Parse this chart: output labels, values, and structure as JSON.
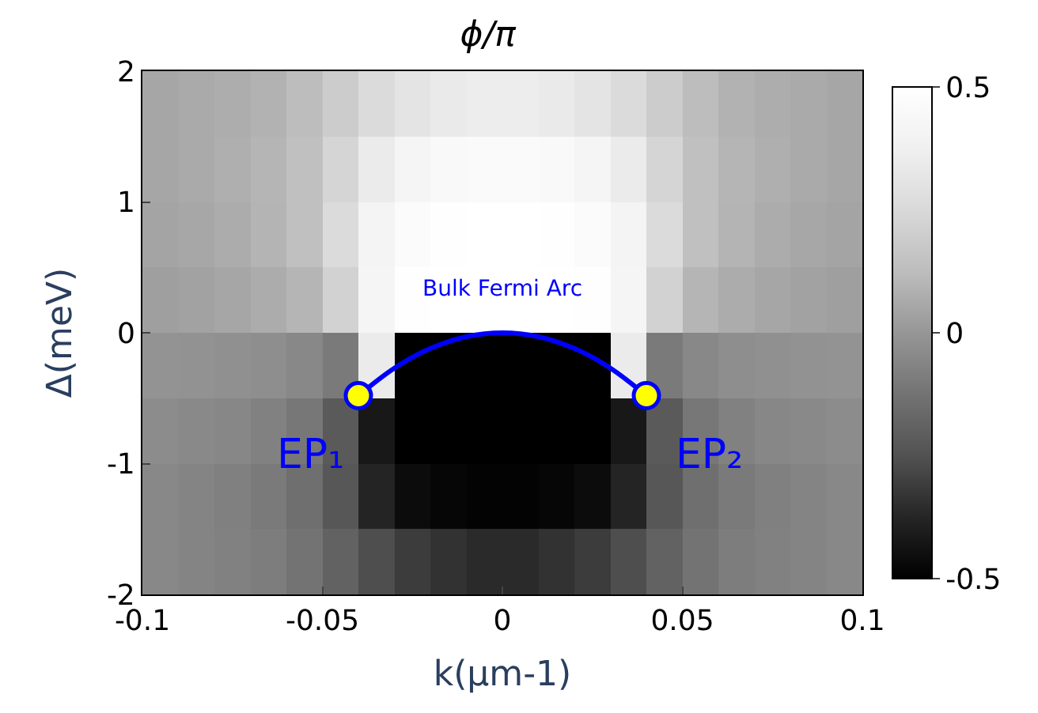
{
  "chart_data": {
    "type": "heatmap",
    "title": "ϕ/π",
    "xlabel": "k(μm-1)",
    "ylabel": "Δ(meV)",
    "x": [
      -0.095,
      -0.085,
      -0.075,
      -0.065,
      -0.055,
      -0.045,
      -0.035,
      -0.025,
      -0.015,
      -0.005,
      0.005,
      0.015,
      0.025,
      0.035,
      0.045,
      0.055,
      0.065,
      0.075,
      0.085,
      0.095
    ],
    "y": [
      1.75,
      1.25,
      0.75,
      0.25,
      -0.25,
      -0.75,
      -1.25,
      -1.75
    ],
    "cells": [
      [
        0.05,
        0.065,
        0.075,
        0.09,
        0.125,
        0.19,
        0.26,
        0.31,
        0.34,
        0.36,
        0.36,
        0.34,
        0.31,
        0.26,
        0.19,
        0.125,
        0.09,
        0.075,
        0.065,
        0.05
      ],
      [
        0.05,
        0.065,
        0.08,
        0.1,
        0.14,
        0.23,
        0.35,
        0.42,
        0.45,
        0.46,
        0.46,
        0.45,
        0.42,
        0.35,
        0.23,
        0.14,
        0.1,
        0.08,
        0.065,
        0.05
      ],
      [
        0.045,
        0.055,
        0.07,
        0.095,
        0.14,
        0.26,
        0.41,
        0.47,
        0.49,
        0.5,
        0.5,
        0.49,
        0.47,
        0.41,
        0.26,
        0.14,
        0.095,
        0.07,
        0.055,
        0.045
      ],
      [
        0.03,
        0.04,
        0.05,
        0.07,
        0.1,
        0.22,
        0.42,
        0.49,
        0.5,
        0.5,
        0.5,
        0.5,
        0.49,
        0.42,
        0.22,
        0.1,
        0.07,
        0.05,
        0.04,
        0.03
      ],
      [
        -0.01,
        -0.015,
        -0.02,
        -0.03,
        -0.05,
        -0.1,
        0.35,
        -0.5,
        -0.5,
        -0.5,
        -0.5,
        -0.5,
        -0.5,
        0.35,
        -0.1,
        -0.05,
        -0.03,
        -0.02,
        -0.015,
        -0.01
      ],
      [
        -0.035,
        -0.045,
        -0.055,
        -0.075,
        -0.11,
        -0.22,
        -0.42,
        -0.5,
        -0.5,
        -0.5,
        -0.5,
        -0.5,
        -0.5,
        -0.42,
        -0.22,
        -0.11,
        -0.075,
        -0.055,
        -0.045,
        -0.035
      ],
      [
        -0.05,
        -0.065,
        -0.08,
        -0.1,
        -0.14,
        -0.23,
        -0.38,
        -0.46,
        -0.48,
        -0.49,
        -0.49,
        -0.48,
        -0.46,
        -0.38,
        -0.23,
        -0.14,
        -0.1,
        -0.08,
        -0.065,
        -0.05
      ],
      [
        -0.05,
        -0.065,
        -0.075,
        -0.09,
        -0.125,
        -0.19,
        -0.26,
        -0.31,
        -0.34,
        -0.36,
        -0.36,
        -0.34,
        -0.31,
        -0.26,
        -0.19,
        -0.125,
        -0.09,
        -0.075,
        -0.065,
        -0.05
      ]
    ],
    "clim": [
      -0.5,
      0.5
    ],
    "cticks": [
      -0.5,
      0,
      0.5
    ],
    "xlim": [
      -0.1,
      0.1
    ],
    "xticks": [
      -0.1,
      -0.05,
      0,
      0.05,
      0.1
    ],
    "ylim": [
      -2,
      2
    ],
    "yticks": [
      -2,
      -1,
      0,
      1,
      2
    ],
    "series": [
      {
        "type": "line",
        "color": "#0000ff",
        "x": [
          -0.04,
          -0.03,
          -0.02,
          -0.01,
          0,
          0.01,
          0.02,
          0.03,
          0.04
        ],
        "values": [
          -0.48,
          -0.27,
          -0.12,
          -0.03,
          0,
          -0.03,
          -0.12,
          -0.27,
          -0.48
        ]
      },
      {
        "type": "scatter",
        "color": "#ffff00",
        "marker": "circle",
        "x": [
          -0.04,
          0.04
        ],
        "values": [
          -0.48,
          -0.48
        ]
      }
    ],
    "annotations": [
      {
        "text": "Bulk Fermi Arc",
        "x": 0,
        "y": 0
      },
      {
        "text": "EP₁",
        "x": -0.04,
        "y": -0.48
      },
      {
        "text": "EP₂",
        "x": 0.04,
        "y": -0.48
      }
    ]
  }
}
